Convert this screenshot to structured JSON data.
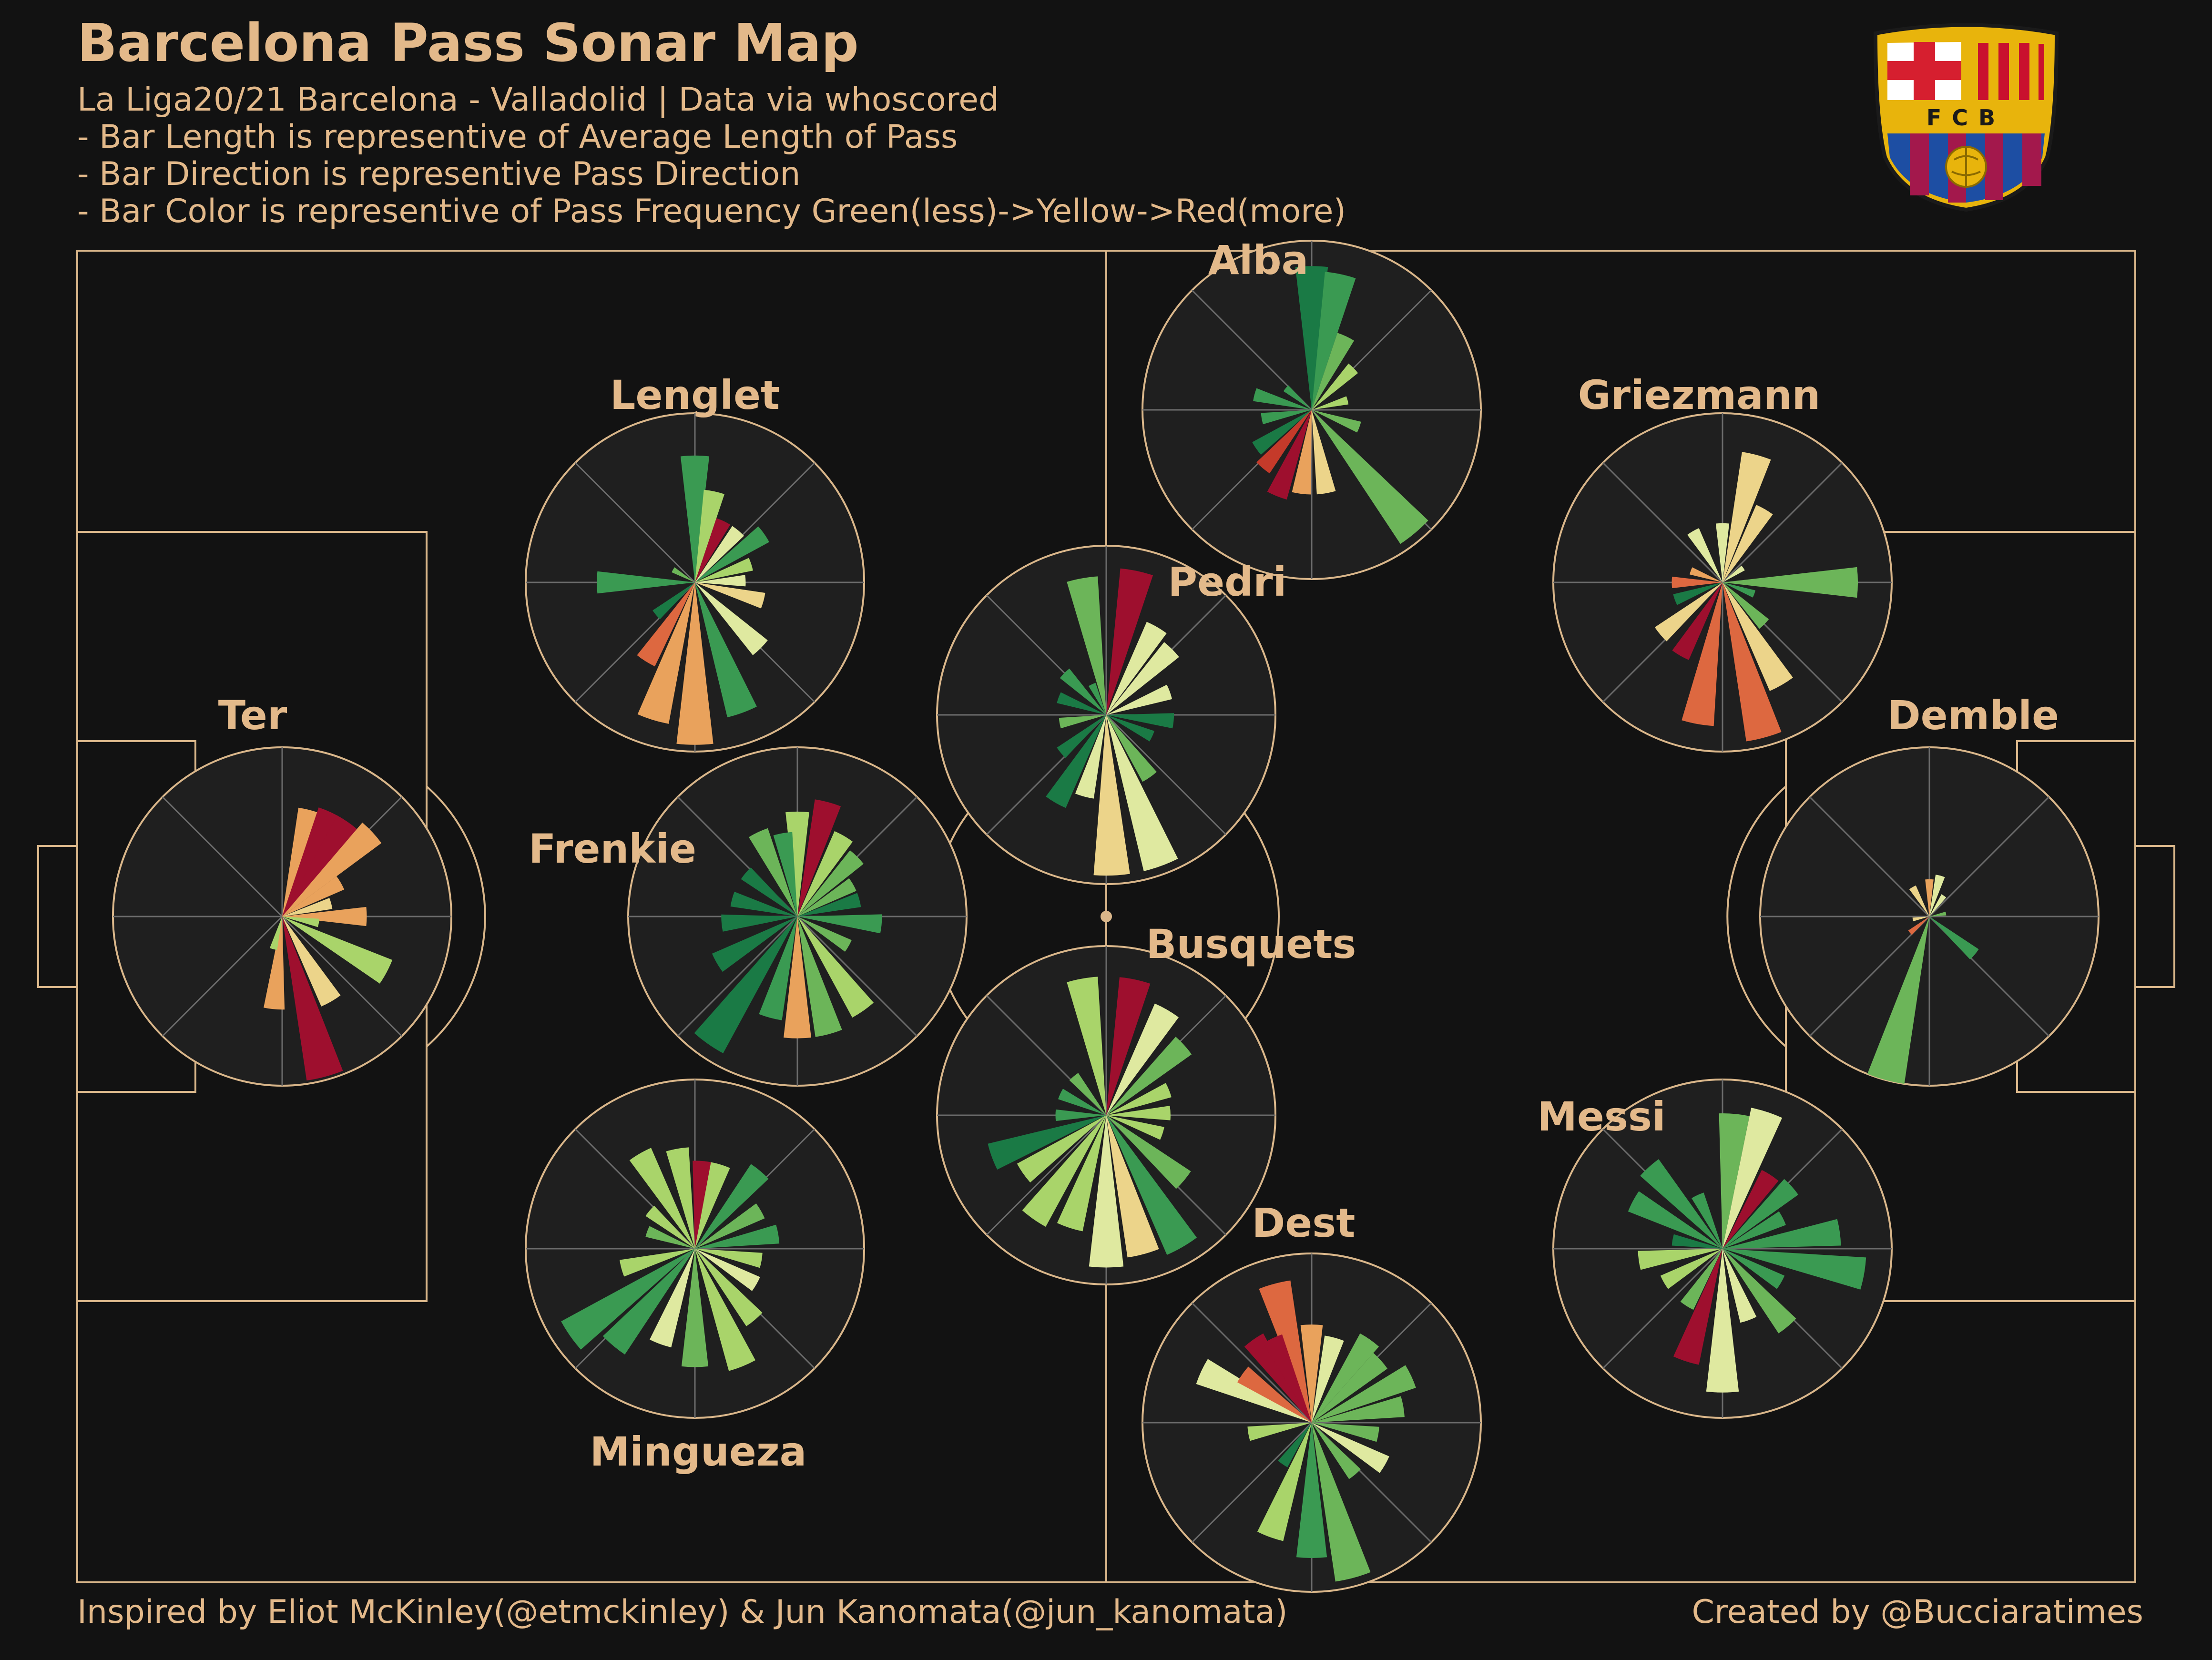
{
  "header": {
    "title": "Barcelona Pass Sonar Map",
    "subtitle_lines": [
      "La Liga20/21 Barcelona - Valladolid  | Data via whoscored",
      "- Bar Length is representive of Average Length of Pass",
      "- Bar Direction is representive Pass Direction",
      "- Bar Color is representive of Pass Frequency Green(less)->Yellow->Red(more)"
    ]
  },
  "footer": {
    "left": "Inspired by Eliot McKinley(@etmckinley) & Jun Kanomata(@jun_kanomata)",
    "right": "Created by @Bucciaratimes"
  },
  "logo": {
    "text": "FCB",
    "colors": {
      "gold": "#e8b40c",
      "red": "#d61f2f",
      "blue": "#1d4ea3",
      "maroon": "#a3184c",
      "white": "#ffffff"
    }
  },
  "colors": {
    "background": "#121212",
    "pitch_lines": "#d9b68a",
    "text": "#e3b98a",
    "scale": [
      "#1a7a45",
      "#3a9a52",
      "#6cb559",
      "#a9d46a",
      "#dfe9a0",
      "#ecd48a",
      "#e9a25c",
      "#dd6840",
      "#c53a2a",
      "#9e0f2e"
    ]
  },
  "chart_data": {
    "type": "polar-bar",
    "description_key": "bars: [direction_deg (0=up, clockwise), relative_length 0-1, frequency_level 0-9]",
    "players": [
      {
        "name": "Ter",
        "bars": [
          [
            15,
            0.65,
            6
          ],
          [
            25,
            0.68,
            9
          ],
          [
            35,
            0.68,
            9
          ],
          [
            47,
            0.73,
            6
          ],
          [
            60,
            0.4,
            6
          ],
          [
            75,
            0.3,
            5
          ],
          [
            90,
            0.5,
            6
          ],
          [
            100,
            0.22,
            3
          ],
          [
            118,
            0.7,
            3
          ],
          [
            150,
            0.58,
            5
          ],
          [
            165,
            0.98,
            9
          ],
          [
            185,
            0.55,
            6
          ],
          [
            195,
            0.2,
            3
          ]
        ]
      },
      {
        "name": "Lenglet",
        "bars": [
          [
            0,
            0.75,
            1
          ],
          [
            12,
            0.55,
            3
          ],
          [
            25,
            0.4,
            9
          ],
          [
            40,
            0.4,
            4
          ],
          [
            55,
            0.5,
            1
          ],
          [
            72,
            0.35,
            3
          ],
          [
            88,
            0.3,
            4
          ],
          [
            105,
            0.42,
            5
          ],
          [
            135,
            0.55,
            4
          ],
          [
            160,
            0.82,
            1
          ],
          [
            180,
            0.96,
            6
          ],
          [
            197,
            0.85,
            6
          ],
          [
            212,
            0.55,
            7
          ],
          [
            230,
            0.3,
            0
          ],
          [
            270,
            0.58,
            1
          ],
          [
            300,
            0.15,
            2
          ]
        ]
      },
      {
        "name": "Alba",
        "bars": [
          [
            0,
            0.85,
            0
          ],
          [
            12,
            0.82,
            1
          ],
          [
            25,
            0.48,
            2
          ],
          [
            45,
            0.35,
            3
          ],
          [
            75,
            0.22,
            3
          ],
          [
            110,
            0.3,
            2
          ],
          [
            140,
            0.95,
            2
          ],
          [
            170,
            0.5,
            5
          ],
          [
            187,
            0.5,
            6
          ],
          [
            202,
            0.55,
            9
          ],
          [
            220,
            0.45,
            8
          ],
          [
            235,
            0.4,
            0
          ],
          [
            260,
            0.3,
            1
          ],
          [
            285,
            0.35,
            1
          ],
          [
            310,
            0.2,
            1
          ]
        ]
      },
      {
        "name": "Pedri",
        "bars": [
          [
            350,
            0.82,
            2
          ],
          [
            12,
            0.87,
            9
          ],
          [
            30,
            0.6,
            4
          ],
          [
            45,
            0.55,
            4
          ],
          [
            70,
            0.4,
            4
          ],
          [
            95,
            0.4,
            0
          ],
          [
            115,
            0.3,
            0
          ],
          [
            145,
            0.45,
            2
          ],
          [
            160,
            0.95,
            4
          ],
          [
            178,
            0.95,
            5
          ],
          [
            195,
            0.5,
            4
          ],
          [
            210,
            0.6,
            0
          ],
          [
            230,
            0.35,
            0
          ],
          [
            260,
            0.28,
            2
          ],
          [
            290,
            0.3,
            0
          ],
          [
            315,
            0.35,
            1
          ],
          [
            335,
            0.2,
            1
          ]
        ]
      },
      {
        "name": "Griezmann",
        "bars": [
          [
            0,
            0.35,
            4
          ],
          [
            15,
            0.78,
            5
          ],
          [
            30,
            0.5,
            5
          ],
          [
            55,
            0.15,
            4
          ],
          [
            90,
            0.8,
            2
          ],
          [
            110,
            0.2,
            1
          ],
          [
            135,
            0.35,
            2
          ],
          [
            150,
            0.7,
            5
          ],
          [
            165,
            0.95,
            7
          ],
          [
            190,
            0.85,
            7
          ],
          [
            210,
            0.5,
            9
          ],
          [
            230,
            0.48,
            5
          ],
          [
            250,
            0.3,
            0
          ],
          [
            270,
            0.3,
            7
          ],
          [
            290,
            0.2,
            6
          ],
          [
            330,
            0.35,
            4
          ]
        ]
      },
      {
        "name": "Frenkie",
        "bars": [
          [
            0,
            0.62,
            3
          ],
          [
            15,
            0.7,
            9
          ],
          [
            30,
            0.55,
            3
          ],
          [
            45,
            0.5,
            2
          ],
          [
            60,
            0.38,
            2
          ],
          [
            75,
            0.38,
            0
          ],
          [
            95,
            0.5,
            1
          ],
          [
            120,
            0.35,
            2
          ],
          [
            145,
            0.68,
            3
          ],
          [
            165,
            0.72,
            2
          ],
          [
            180,
            0.72,
            6
          ],
          [
            195,
            0.62,
            1
          ],
          [
            215,
            0.92,
            0
          ],
          [
            240,
            0.55,
            0
          ],
          [
            265,
            0.45,
            0
          ],
          [
            285,
            0.4,
            0
          ],
          [
            310,
            0.4,
            0
          ],
          [
            335,
            0.55,
            2
          ],
          [
            350,
            0.5,
            1
          ]
        ]
      },
      {
        "name": "Demble",
        "bars": [
          [
            0,
            0.22,
            6
          ],
          [
            15,
            0.25,
            4
          ],
          [
            35,
            0.15,
            4
          ],
          [
            80,
            0.1,
            2
          ],
          [
            130,
            0.35,
            1
          ],
          [
            195,
            1.0,
            2
          ],
          [
            230,
            0.15,
            7
          ],
          [
            260,
            0.1,
            5
          ],
          [
            330,
            0.2,
            5
          ]
        ]
      },
      {
        "name": "Busquets",
        "bars": [
          [
            350,
            0.82,
            3
          ],
          [
            12,
            0.82,
            9
          ],
          [
            30,
            0.72,
            4
          ],
          [
            48,
            0.62,
            2
          ],
          [
            68,
            0.4,
            3
          ],
          [
            88,
            0.38,
            3
          ],
          [
            108,
            0.35,
            3
          ],
          [
            130,
            0.6,
            2
          ],
          [
            150,
            0.9,
            1
          ],
          [
            165,
            0.85,
            5
          ],
          [
            180,
            0.9,
            4
          ],
          [
            198,
            0.7,
            3
          ],
          [
            215,
            0.75,
            3
          ],
          [
            235,
            0.6,
            3
          ],
          [
            250,
            0.72,
            0
          ],
          [
            270,
            0.3,
            1
          ],
          [
            295,
            0.3,
            1
          ],
          [
            320,
            0.3,
            2
          ]
        ]
      },
      {
        "name": "Messi",
        "bars": [
          [
            5,
            0.8,
            2
          ],
          [
            18,
            0.85,
            4
          ],
          [
            33,
            0.52,
            9
          ],
          [
            48,
            0.55,
            1
          ],
          [
            63,
            0.4,
            1
          ],
          [
            82,
            0.7,
            1
          ],
          [
            100,
            0.85,
            1
          ],
          [
            120,
            0.4,
            1
          ],
          [
            140,
            0.6,
            2
          ],
          [
            160,
            0.45,
            4
          ],
          [
            180,
            0.85,
            4
          ],
          [
            198,
            0.7,
            9
          ],
          [
            212,
            0.4,
            2
          ],
          [
            240,
            0.4,
            3
          ],
          [
            262,
            0.5,
            3
          ],
          [
            280,
            0.3,
            0
          ],
          [
            298,
            0.6,
            1
          ],
          [
            318,
            0.65,
            1
          ],
          [
            335,
            0.35,
            1
          ]
        ]
      },
      {
        "name": "Mingueza",
        "bars": [
          [
            330,
            0.65,
            3
          ],
          [
            350,
            0.6,
            3
          ],
          [
            5,
            0.52,
            9
          ],
          [
            17,
            0.52,
            3
          ],
          [
            40,
            0.6,
            1
          ],
          [
            60,
            0.45,
            2
          ],
          [
            80,
            0.5,
            1
          ],
          [
            100,
            0.4,
            3
          ],
          [
            120,
            0.42,
            4
          ],
          [
            140,
            0.55,
            3
          ],
          [
            158,
            0.75,
            3
          ],
          [
            180,
            0.7,
            2
          ],
          [
            200,
            0.6,
            4
          ],
          [
            220,
            0.75,
            1
          ],
          [
            235,
            0.9,
            1
          ],
          [
            255,
            0.45,
            3
          ],
          [
            290,
            0.3,
            2
          ],
          [
            310,
            0.35,
            3
          ]
        ]
      },
      {
        "name": "Dest",
        "bars": [
          [
            345,
            0.85,
            7
          ],
          [
            0,
            0.58,
            6
          ],
          [
            15,
            0.52,
            4
          ],
          [
            35,
            0.6,
            2
          ],
          [
            48,
            0.55,
            2
          ],
          [
            65,
            0.65,
            2
          ],
          [
            80,
            0.55,
            2
          ],
          [
            100,
            0.4,
            2
          ],
          [
            120,
            0.5,
            4
          ],
          [
            140,
            0.4,
            2
          ],
          [
            165,
            0.95,
            2
          ],
          [
            180,
            0.8,
            1
          ],
          [
            200,
            0.72,
            3
          ],
          [
            215,
            0.3,
            0
          ],
          [
            260,
            0.38,
            3
          ],
          [
            295,
            0.72,
            4
          ],
          [
            305,
            0.5,
            7
          ],
          [
            325,
            0.6,
            9
          ],
          [
            335,
            0.55,
            9
          ]
        ]
      }
    ]
  }
}
